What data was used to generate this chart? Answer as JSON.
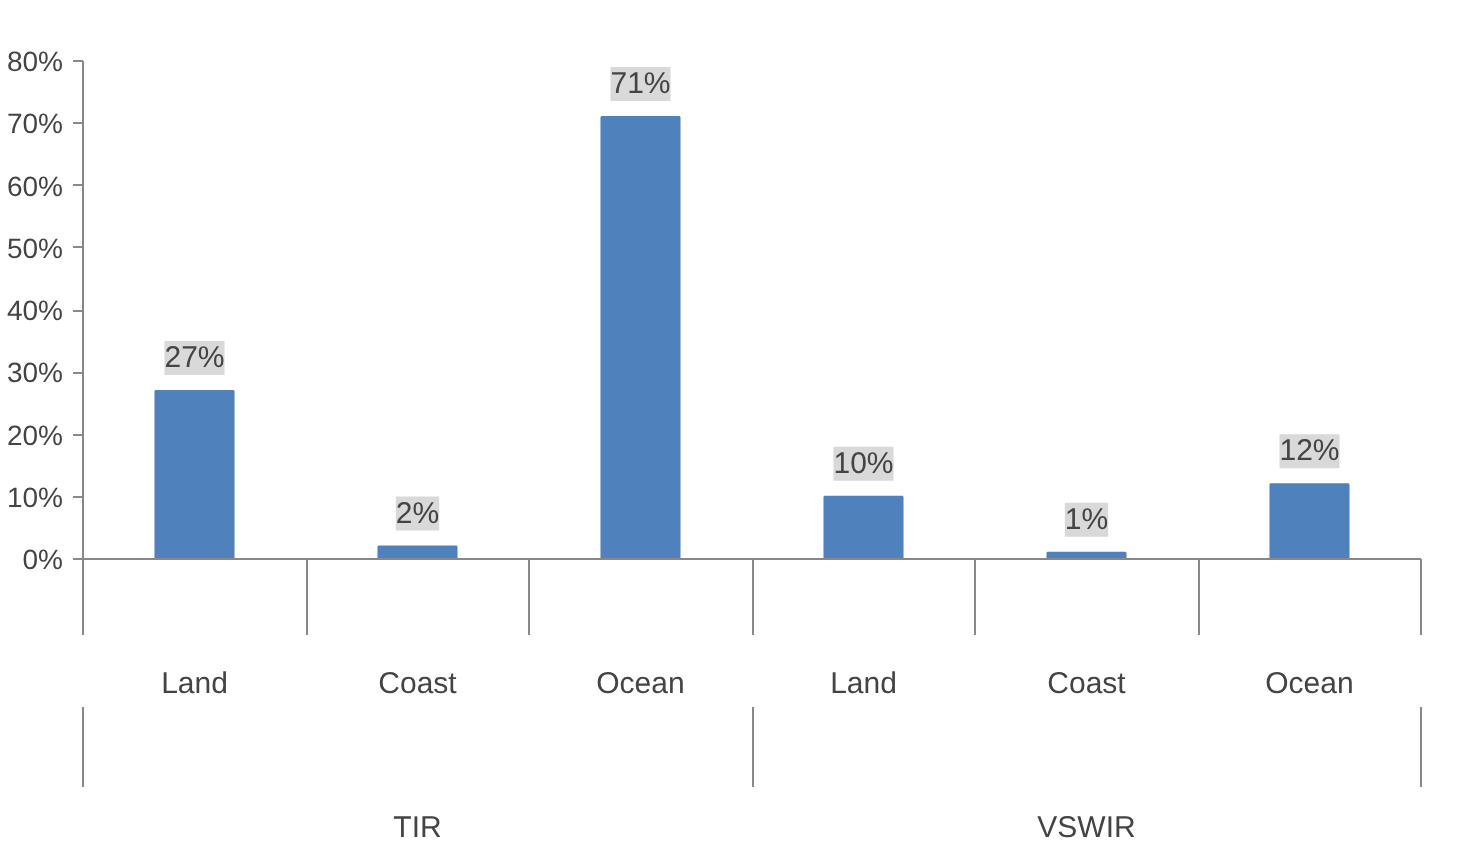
{
  "chart_data": {
    "type": "bar",
    "categories": [
      "Land",
      "Coast",
      "Ocean",
      "Land",
      "Coast",
      "Ocean"
    ],
    "values": [
      27,
      2,
      71,
      10,
      1,
      12
    ],
    "value_labels": [
      "27%",
      "2%",
      "71%",
      "10%",
      "1%",
      "12%"
    ],
    "color": "#4f81bd",
    "ylim": [
      0,
      80
    ],
    "yticks": [
      {
        "value": 0,
        "label": "0%"
      },
      {
        "value": 10,
        "label": "10%"
      },
      {
        "value": 20,
        "label": "20%"
      },
      {
        "value": 30,
        "label": "30%"
      },
      {
        "value": 40,
        "label": "40%"
      },
      {
        "value": 50,
        "label": "50%"
      },
      {
        "value": 60,
        "label": "60%"
      },
      {
        "value": 70,
        "label": "70%"
      },
      {
        "value": 80,
        "label": "80%"
      }
    ],
    "annotations": [
      "TIR",
      "VSWIR"
    ],
    "grid": false
  }
}
